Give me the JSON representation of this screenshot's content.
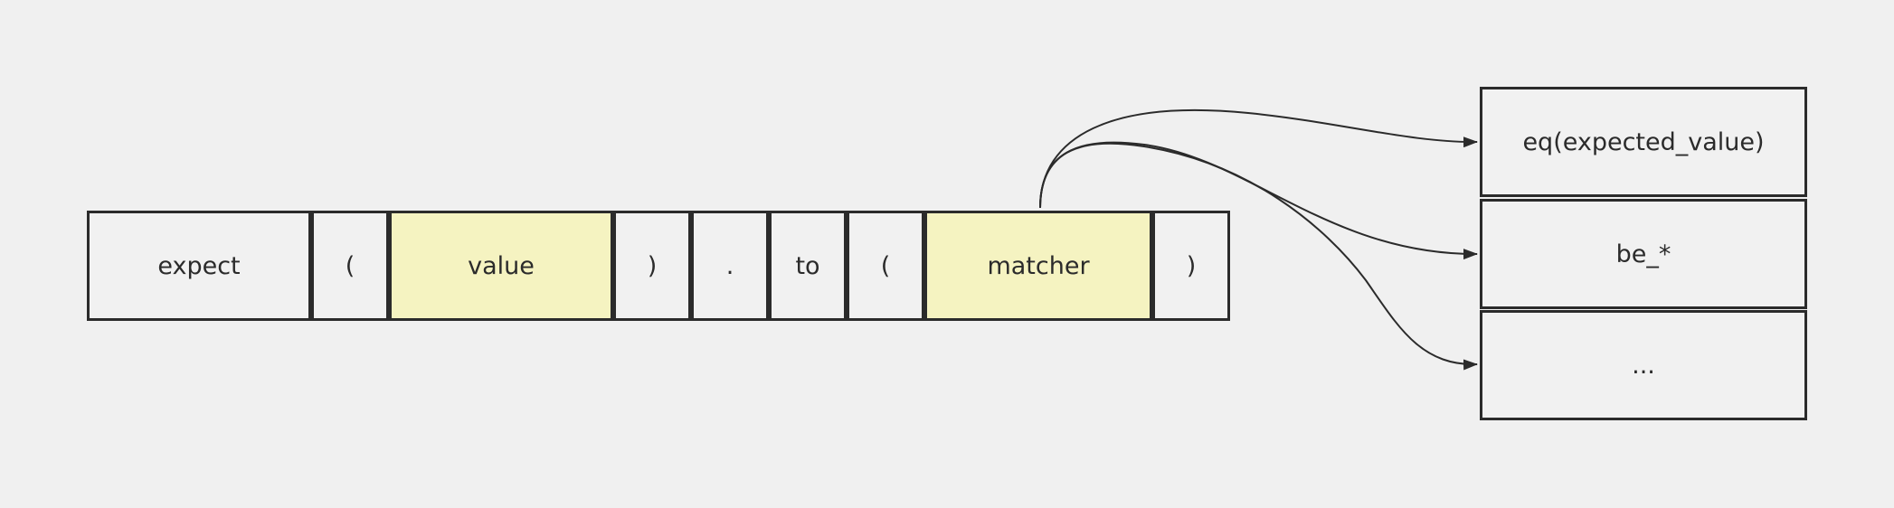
{
  "expression": {
    "tokens": [
      {
        "text": "expect",
        "highlight": false
      },
      {
        "text": "(",
        "highlight": false
      },
      {
        "text": "value",
        "highlight": true
      },
      {
        "text": ")",
        "highlight": false
      },
      {
        "text": ".",
        "highlight": false
      },
      {
        "text": "to",
        "highlight": false
      },
      {
        "text": "(",
        "highlight": false
      },
      {
        "text": "matcher",
        "highlight": true
      },
      {
        "text": ")",
        "highlight": false
      }
    ]
  },
  "matchers": {
    "options": [
      {
        "text": "eq(expected_value)"
      },
      {
        "text": "be_*"
      },
      {
        "text": "..."
      }
    ]
  },
  "colors": {
    "highlight": "#f5f3c1",
    "box_fill": "#f1f1f1",
    "stroke": "#2b2b2b",
    "background": "#f0f0f0"
  }
}
